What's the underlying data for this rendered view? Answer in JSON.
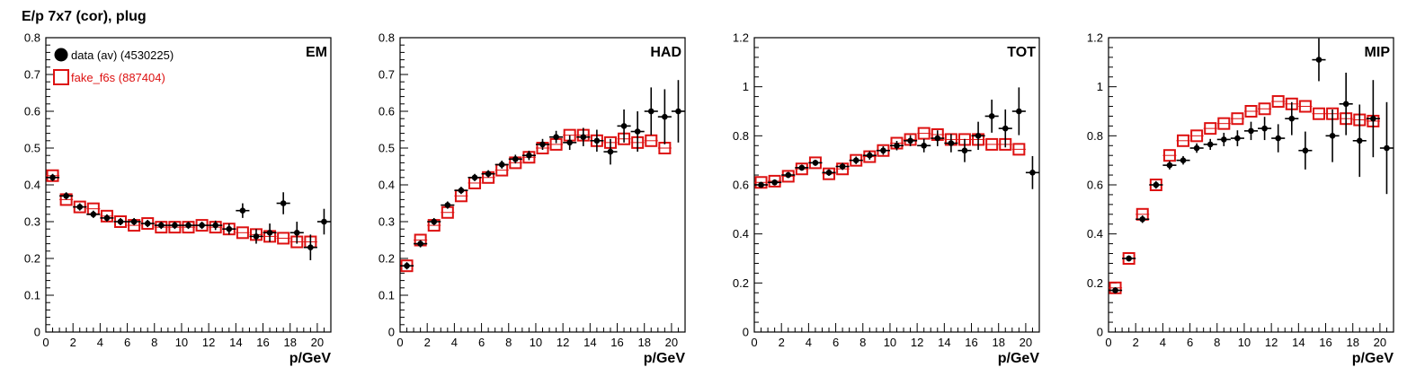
{
  "page_title": "E/p 7x7 (cor), plug",
  "colors": {
    "data": "#000000",
    "mc": "#dd1111"
  },
  "legend": {
    "data_label": "data (av) (4530225)",
    "mc_label": "fake_f6s (887404)"
  },
  "chart_data": [
    {
      "type": "scatter",
      "panel_label": "EM",
      "xlabel": "p/GeV",
      "xlim": [
        0,
        21
      ],
      "ylim": [
        0,
        0.8
      ],
      "xticks": [
        0,
        2,
        4,
        6,
        8,
        10,
        12,
        14,
        16,
        18,
        20
      ],
      "yticks": [
        0,
        0.1,
        0.2,
        0.3,
        0.4,
        0.5,
        0.6,
        0.7,
        0.8
      ],
      "ytick_labels": [
        "0",
        "0.1",
        "0.2",
        "0.3",
        "0.4",
        "0.5",
        "0.6",
        "0.7",
        "0.8"
      ],
      "series": [
        {
          "name": "data (av) (4530225)",
          "x": [
            0.5,
            1.5,
            2.5,
            3.5,
            4.5,
            5.5,
            6.5,
            7.5,
            8.5,
            9.5,
            10.5,
            11.5,
            12.5,
            13.5,
            14.5,
            15.5,
            16.5,
            17.5,
            18.5,
            19.5,
            20.5
          ],
          "y": [
            0.42,
            0.37,
            0.34,
            0.32,
            0.31,
            0.3,
            0.3,
            0.295,
            0.29,
            0.29,
            0.29,
            0.29,
            0.29,
            0.28,
            0.33,
            0.26,
            0.27,
            0.35,
            0.27,
            0.23,
            0.3
          ],
          "yerr": [
            0.005,
            0.005,
            0.005,
            0.005,
            0.005,
            0.005,
            0.005,
            0.005,
            0.005,
            0.005,
            0.005,
            0.005,
            0.008,
            0.01,
            0.015,
            0.015,
            0.02,
            0.025,
            0.025,
            0.03,
            0.03
          ]
        },
        {
          "name": "fake_f6s (887404)",
          "x": [
            0.5,
            1.5,
            2.5,
            3.5,
            4.5,
            5.5,
            6.5,
            7.5,
            8.5,
            9.5,
            10.5,
            11.5,
            12.5,
            13.5,
            14.5,
            15.5,
            16.5,
            17.5,
            18.5,
            19.5
          ],
          "y": [
            0.425,
            0.36,
            0.34,
            0.335,
            0.315,
            0.3,
            0.29,
            0.295,
            0.285,
            0.285,
            0.285,
            0.29,
            0.285,
            0.28,
            0.27,
            0.265,
            0.26,
            0.255,
            0.245,
            0.245
          ]
        }
      ]
    },
    {
      "type": "scatter",
      "panel_label": "HAD",
      "xlabel": "p/GeV",
      "xlim": [
        0,
        21
      ],
      "ylim": [
        0,
        0.8
      ],
      "xticks": [
        0,
        2,
        4,
        6,
        8,
        10,
        12,
        14,
        16,
        18,
        20
      ],
      "yticks": [
        0,
        0.1,
        0.2,
        0.3,
        0.4,
        0.5,
        0.6,
        0.7,
        0.8
      ],
      "ytick_labels": [
        "0",
        "0.1",
        "0.2",
        "0.3",
        "0.4",
        "0.5",
        "0.6",
        "0.7",
        "0.8"
      ],
      "series": [
        {
          "name": "data (av) (4530225)",
          "x": [
            0.5,
            1.5,
            2.5,
            3.5,
            4.5,
            5.5,
            6.5,
            7.5,
            8.5,
            9.5,
            10.5,
            11.5,
            12.5,
            13.5,
            14.5,
            15.5,
            16.5,
            17.5,
            18.5,
            19.5,
            20.5
          ],
          "y": [
            0.18,
            0.24,
            0.3,
            0.345,
            0.385,
            0.42,
            0.43,
            0.455,
            0.47,
            0.48,
            0.51,
            0.53,
            0.515,
            0.53,
            0.52,
            0.49,
            0.56,
            0.545,
            0.6,
            0.585,
            0.6
          ],
          "yerr": [
            0.005,
            0.005,
            0.005,
            0.005,
            0.005,
            0.005,
            0.005,
            0.006,
            0.007,
            0.008,
            0.01,
            0.012,
            0.015,
            0.02,
            0.025,
            0.03,
            0.04,
            0.05,
            0.06,
            0.07,
            0.08
          ]
        },
        {
          "name": "fake_f6s (887404)",
          "x": [
            0.5,
            1.5,
            2.5,
            3.5,
            4.5,
            5.5,
            6.5,
            7.5,
            8.5,
            9.5,
            10.5,
            11.5,
            12.5,
            13.5,
            14.5,
            15.5,
            16.5,
            17.5,
            18.5,
            19.5
          ],
          "y": [
            0.18,
            0.25,
            0.29,
            0.325,
            0.37,
            0.405,
            0.42,
            0.44,
            0.46,
            0.475,
            0.5,
            0.51,
            0.535,
            0.535,
            0.52,
            0.515,
            0.525,
            0.515,
            0.52,
            0.5
          ]
        }
      ]
    },
    {
      "type": "scatter",
      "panel_label": "TOT",
      "xlabel": "p/GeV",
      "xlim": [
        0,
        21
      ],
      "ylim": [
        0,
        1.2
      ],
      "xticks": [
        0,
        2,
        4,
        6,
        8,
        10,
        12,
        14,
        16,
        18,
        20
      ],
      "yticks": [
        0,
        0.2,
        0.4,
        0.6,
        0.8,
        1.0,
        1.2
      ],
      "ytick_labels": [
        "0",
        "0.2",
        "0.4",
        "0.6",
        "0.8",
        "1",
        "1.2"
      ],
      "series": [
        {
          "name": "data (av) (4530225)",
          "x": [
            0.5,
            1.5,
            2.5,
            3.5,
            4.5,
            5.5,
            6.5,
            7.5,
            8.5,
            9.5,
            10.5,
            11.5,
            12.5,
            13.5,
            14.5,
            15.5,
            16.5,
            17.5,
            18.5,
            19.5,
            20.5
          ],
          "y": [
            0.6,
            0.61,
            0.64,
            0.67,
            0.69,
            0.65,
            0.675,
            0.7,
            0.72,
            0.74,
            0.76,
            0.78,
            0.76,
            0.79,
            0.77,
            0.74,
            0.8,
            0.88,
            0.83,
            0.9,
            0.65
          ],
          "yerr": [
            0.005,
            0.005,
            0.005,
            0.005,
            0.005,
            0.006,
            0.007,
            0.008,
            0.01,
            0.01,
            0.012,
            0.015,
            0.02,
            0.025,
            0.03,
            0.04,
            0.05,
            0.06,
            0.07,
            0.09,
            0.06
          ]
        },
        {
          "name": "fake_f6s (887404)",
          "x": [
            0.5,
            1.5,
            2.5,
            3.5,
            4.5,
            5.5,
            6.5,
            7.5,
            8.5,
            9.5,
            10.5,
            11.5,
            12.5,
            13.5,
            14.5,
            15.5,
            16.5,
            17.5,
            18.5,
            19.5
          ],
          "y": [
            0.61,
            0.615,
            0.635,
            0.665,
            0.69,
            0.645,
            0.665,
            0.7,
            0.715,
            0.74,
            0.77,
            0.785,
            0.81,
            0.805,
            0.785,
            0.785,
            0.785,
            0.765,
            0.765,
            0.745
          ]
        }
      ]
    },
    {
      "type": "scatter",
      "panel_label": "MIP",
      "xlabel": "p/GeV",
      "xlim": [
        0,
        21
      ],
      "ylim": [
        0,
        1.2
      ],
      "xticks": [
        0,
        2,
        4,
        6,
        8,
        10,
        12,
        14,
        16,
        18,
        20
      ],
      "yticks": [
        0,
        0.2,
        0.4,
        0.6,
        0.8,
        1.0,
        1.2
      ],
      "ytick_labels": [
        "0",
        "0.2",
        "0.4",
        "0.6",
        "0.8",
        "1",
        "1.2"
      ],
      "series": [
        {
          "name": "data (av) (4530225)",
          "x": [
            0.5,
            1.5,
            2.5,
            3.5,
            4.5,
            5.5,
            6.5,
            7.5,
            8.5,
            9.5,
            10.5,
            11.5,
            12.5,
            13.5,
            14.5,
            15.5,
            16.5,
            17.5,
            18.5,
            19.5,
            20.5
          ],
          "y": [
            0.17,
            0.3,
            0.46,
            0.6,
            0.68,
            0.7,
            0.75,
            0.765,
            0.785,
            0.79,
            0.82,
            0.83,
            0.79,
            0.87,
            0.74,
            1.11,
            0.8,
            0.93,
            0.78,
            0.87,
            0.75
          ],
          "yerr": [
            0.005,
            0.005,
            0.008,
            0.008,
            0.01,
            0.01,
            0.012,
            0.015,
            0.02,
            0.025,
            0.03,
            0.04,
            0.05,
            0.06,
            0.07,
            0.08,
            0.1,
            0.12,
            0.14,
            0.15,
            0.18
          ]
        },
        {
          "name": "fake_f6s (887404)",
          "x": [
            0.5,
            1.5,
            2.5,
            3.5,
            4.5,
            5.5,
            6.5,
            7.5,
            8.5,
            9.5,
            10.5,
            11.5,
            12.5,
            13.5,
            14.5,
            15.5,
            16.5,
            17.5,
            18.5,
            19.5
          ],
          "y": [
            0.18,
            0.3,
            0.48,
            0.6,
            0.72,
            0.78,
            0.8,
            0.83,
            0.85,
            0.87,
            0.9,
            0.91,
            0.94,
            0.93,
            0.92,
            0.89,
            0.89,
            0.87,
            0.865,
            0.86
          ]
        }
      ]
    }
  ]
}
